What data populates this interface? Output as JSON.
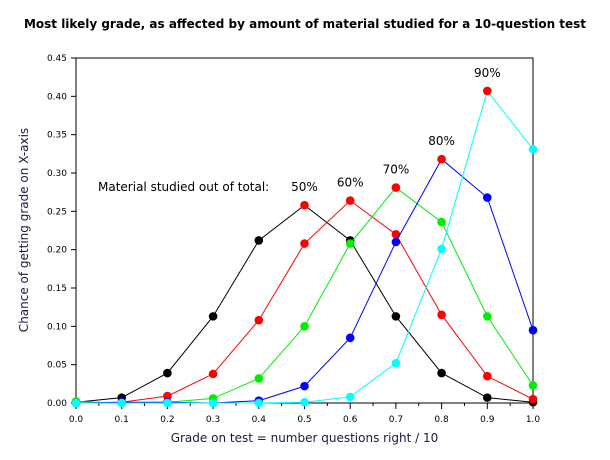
{
  "chart_data": {
    "type": "line",
    "title": "Most likely grade, as affected by amount of material studied for a 10-question test",
    "xlabel": "Grade on test = number questions right / 10",
    "ylabel": "Chance of getting grade on X-axis",
    "xlim": [
      0,
      1.0
    ],
    "ylim": [
      0,
      0.45
    ],
    "x": [
      0.0,
      0.1,
      0.2,
      0.3,
      0.4,
      0.5,
      0.6,
      0.7,
      0.8,
      0.9,
      1.0
    ],
    "xticks": [
      "0.0",
      "0.1",
      "0.2",
      "0.3",
      "0.4",
      "0.5",
      "0.6",
      "0.7",
      "0.8",
      "0.9",
      "1.0"
    ],
    "yticks": [
      "0.00",
      "0.05",
      "0.10",
      "0.15",
      "0.20",
      "0.25",
      "0.30",
      "0.35",
      "0.40",
      "0.45"
    ],
    "annotation": "Material studied out of total:",
    "peak_color": "#ff0000",
    "series": [
      {
        "name": "50%",
        "color": "#000000",
        "values": [
          0.001,
          0.007,
          0.039,
          0.113,
          0.212,
          0.258,
          0.212,
          0.113,
          0.039,
          0.007,
          0.001
        ]
      },
      {
        "name": "60%",
        "color": "#ff0000",
        "values": [
          0.0,
          0.001,
          0.009,
          0.038,
          0.108,
          0.208,
          0.264,
          0.22,
          0.115,
          0.035,
          0.005
        ]
      },
      {
        "name": "70%",
        "color": "#00ee00",
        "values": [
          0.002,
          0.0,
          0.001,
          0.006,
          0.032,
          0.1,
          0.208,
          0.281,
          0.236,
          0.113,
          0.023
        ]
      },
      {
        "name": "80%",
        "color": "#0000ff",
        "values": [
          0.0,
          0.001,
          0.001,
          0.0,
          0.003,
          0.022,
          0.085,
          0.21,
          0.318,
          0.268,
          0.095
        ]
      },
      {
        "name": "90%",
        "color": "#00ffff",
        "values": [
          0.0,
          0.0,
          0.0,
          0.0,
          0.0,
          0.001,
          0.008,
          0.052,
          0.201,
          0.407,
          0.331
        ]
      }
    ]
  }
}
